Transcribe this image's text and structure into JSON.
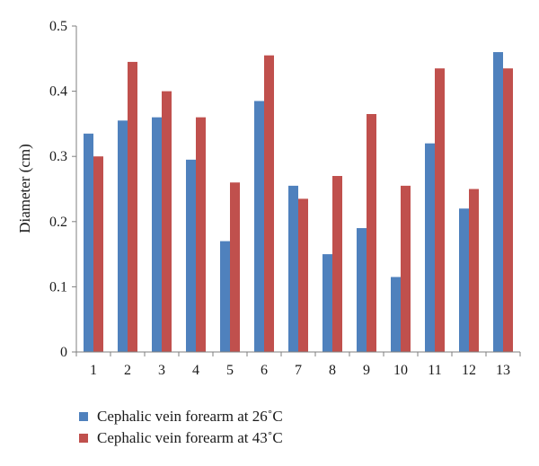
{
  "chart_data": {
    "type": "bar",
    "categories": [
      "1",
      "2",
      "3",
      "4",
      "5",
      "6",
      "7",
      "8",
      "9",
      "10",
      "11",
      "12",
      "13"
    ],
    "series": [
      {
        "name": "Cephalic vein forearm at 26˚C",
        "color": "#4f81bd",
        "values": [
          0.335,
          0.355,
          0.36,
          0.295,
          0.17,
          0.385,
          0.255,
          0.15,
          0.19,
          0.115,
          0.32,
          0.22,
          0.46
        ]
      },
      {
        "name": "Cephalic vein forearm at 43˚C",
        "color": "#c0504d",
        "values": [
          0.3,
          0.445,
          0.4,
          0.36,
          0.26,
          0.455,
          0.235,
          0.27,
          0.365,
          0.255,
          0.435,
          0.25,
          0.435
        ]
      }
    ],
    "ylabel": "Diameter (cm)",
    "xlabel": "",
    "ylim": [
      0,
      0.5
    ],
    "yticks": [
      "0",
      "0.1",
      "0.2",
      "0.3",
      "0.4",
      "0.5"
    ],
    "grid": false,
    "legend_position": "bottom-left"
  }
}
